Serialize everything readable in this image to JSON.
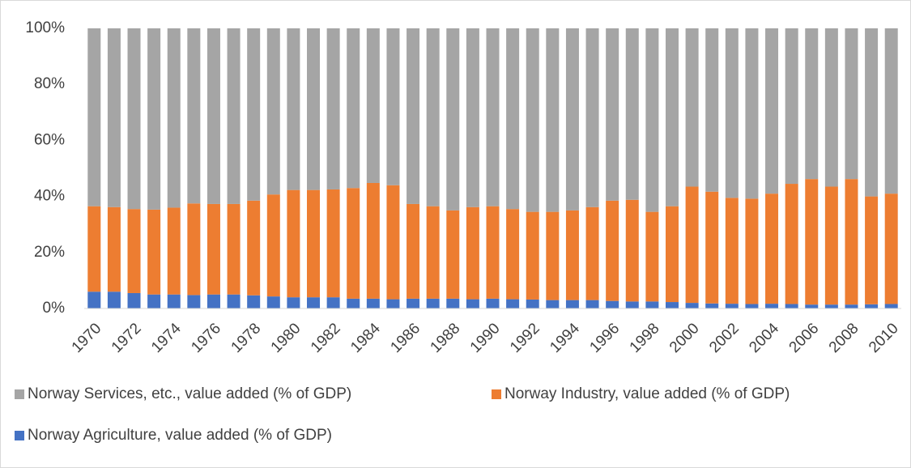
{
  "chart_data": {
    "type": "stacked-bar",
    "categories": [
      "1970",
      null,
      "1972",
      null,
      "1974",
      null,
      "1976",
      null,
      "1978",
      null,
      "1980",
      null,
      "1982",
      null,
      "1984",
      null,
      "1986",
      null,
      "1988",
      null,
      "1990",
      null,
      "1992",
      null,
      "1994",
      null,
      "1996",
      null,
      "1998",
      null,
      "2000",
      null,
      "2002",
      null,
      "2004",
      null,
      "2006",
      null,
      "2008",
      null,
      "2010"
    ],
    "series": [
      {
        "name": "Norway Agriculture, value added (% of GDP)",
        "color": "#4472c4",
        "values": [
          6,
          6,
          5.5,
          5,
          5,
          4.8,
          5,
          5,
          4.7,
          4.3,
          4,
          4,
          4,
          3.5,
          3.5,
          3.3,
          3.5,
          3.5,
          3.5,
          3.3,
          3.5,
          3.3,
          3.2,
          3,
          3,
          3,
          2.7,
          2.5,
          2.5,
          2.3,
          2,
          1.8,
          1.7,
          1.6,
          1.7,
          1.6,
          1.4,
          1.4,
          1.4,
          1.5,
          1.6
        ]
      },
      {
        "name": "Norway Industry, value added (% of GDP)",
        "color": "#ed7d31",
        "values": [
          30.5,
          30.2,
          30.0,
          30.3,
          31.0,
          32.7,
          32.3,
          32.3,
          33.8,
          36.4,
          38.3,
          38.3,
          38.5,
          39.5,
          41.3,
          40.7,
          33.8,
          33.0,
          31.5,
          32.9,
          33.0,
          32.2,
          31.3,
          31.5,
          32.0,
          33.2,
          35.8,
          36.3,
          32.0,
          34.2,
          41.5,
          39.9,
          37.8,
          37.6,
          39.3,
          42.9,
          44.8,
          42.1,
          44.8,
          38.5,
          39.4
        ]
      },
      {
        "name": "Norway Services, etc., value added (% of GDP)",
        "color": "#a5a5a5",
        "values": [
          63.5,
          63.8,
          64.5,
          64.7,
          64.0,
          62.5,
          62.7,
          62.7,
          61.5,
          59.3,
          57.7,
          57.7,
          57.5,
          57.0,
          55.2,
          56.0,
          62.7,
          63.5,
          65.0,
          63.8,
          63.5,
          64.5,
          65.5,
          65.5,
          65.0,
          63.8,
          61.5,
          61.2,
          65.5,
          63.5,
          56.5,
          58.3,
          60.5,
          60.8,
          59.0,
          55.5,
          53.8,
          56.5,
          53.8,
          60.0,
          59.0
        ]
      }
    ],
    "ylim": [
      0,
      100
    ],
    "yticks": [
      {
        "value": 0,
        "label": "0%"
      },
      {
        "value": 20,
        "label": "20%"
      },
      {
        "value": 40,
        "label": "40%"
      },
      {
        "value": 60,
        "label": "60%"
      },
      {
        "value": 80,
        "label": "80%"
      },
      {
        "value": 100,
        "label": "100%"
      }
    ]
  }
}
